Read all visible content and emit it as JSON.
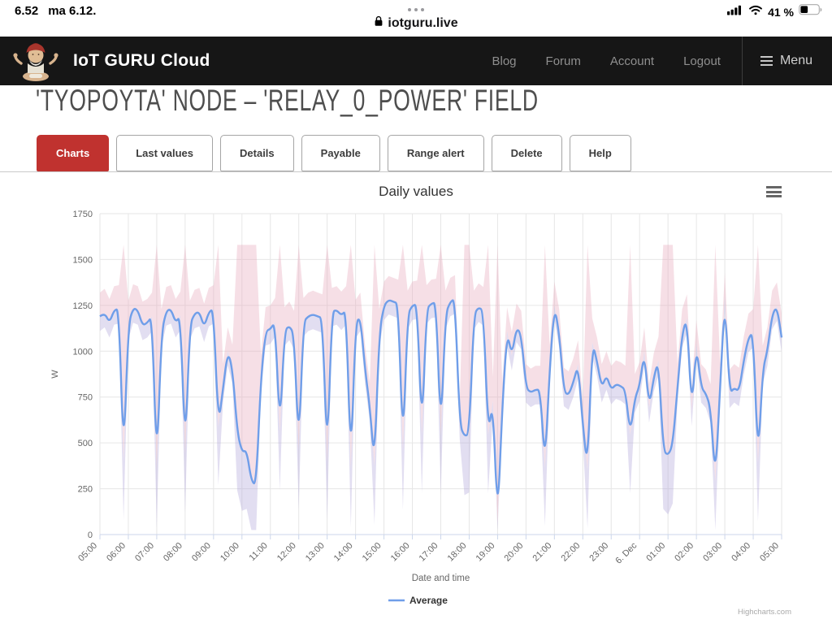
{
  "status_bar": {
    "time": "6.52",
    "date": "ma 6.12.",
    "battery_percent": "41 %",
    "battery_level": 0.41
  },
  "browser": {
    "url": "iotguru.live"
  },
  "header": {
    "brand": "IoT GURU Cloud",
    "nav": [
      "Blog",
      "Forum",
      "Account",
      "Logout"
    ],
    "menu_label": "Menu"
  },
  "page": {
    "heading": "'TYOPOYTA' NODE – 'RELAY_0_POWER' FIELD"
  },
  "tabs": [
    {
      "label": "Charts",
      "active": true
    },
    {
      "label": "Last values",
      "active": false
    },
    {
      "label": "Details",
      "active": false
    },
    {
      "label": "Payable",
      "active": false
    },
    {
      "label": "Range alert",
      "active": false
    },
    {
      "label": "Delete",
      "active": false
    },
    {
      "label": "Help",
      "active": false
    }
  ],
  "chart_data": {
    "type": "line",
    "title": "Daily values",
    "xlabel": "Date and time",
    "ylabel": "W",
    "ylim": [
      0,
      1750
    ],
    "grid": true,
    "legend_position": "bottom-center",
    "y_ticks": [
      0,
      250,
      500,
      750,
      1000,
      1250,
      1500,
      1750
    ],
    "x_tick_labels": [
      "05:00",
      "06:00",
      "07:00",
      "08:00",
      "09:00",
      "10:00",
      "11:00",
      "12:00",
      "13:00",
      "14:00",
      "15:00",
      "16:00",
      "17:00",
      "18:00",
      "19:00",
      "20:00",
      "21:00",
      "22:00",
      "23:00",
      "6. Dec",
      "01:00",
      "02:00",
      "03:00",
      "04:00",
      "05:00"
    ],
    "sample_interval_minutes": 10,
    "series": [
      {
        "name": "Average",
        "color": "#6f9ee9",
        "values": [
          1190,
          1210,
          1155,
          1225,
          1230,
          400,
          1145,
          1235,
          1225,
          1140,
          1155,
          1190,
          355,
          1100,
          1220,
          1230,
          1155,
          1195,
          440,
          1145,
          1205,
          1215,
          1130,
          1215,
          1230,
          590,
          800,
          1000,
          905,
          560,
          450,
          460,
          290,
          270,
          850,
          1110,
          1120,
          1160,
          560,
          1110,
          1140,
          1090,
          460,
          1160,
          1190,
          1200,
          1190,
          1180,
          400,
          1215,
          1225,
          1195,
          1225,
          360,
          1150,
          1190,
          900,
          700,
          375,
          1100,
          1250,
          1280,
          1270,
          1260,
          455,
          1200,
          1250,
          1255,
          545,
          1230,
          1260,
          1265,
          540,
          1200,
          1270,
          1285,
          600,
          535,
          550,
          1200,
          1240,
          1220,
          545,
          730,
          60,
          700,
          1110,
          975,
          1130,
          1090,
          800,
          775,
          790,
          790,
          365,
          900,
          1250,
          1100,
          780,
          760,
          830,
          930,
          600,
          355,
          1050,
          945,
          800,
          870,
          790,
          820,
          810,
          790,
          545,
          745,
          810,
          1000,
          690,
          860,
          950,
          460,
          430,
          490,
          800,
          1100,
          1180,
          670,
          1040,
          800,
          770,
          690,
          290,
          800,
          1300,
          770,
          800,
          780,
          950,
          1075,
          1100,
          390,
          900,
          1000,
          1200,
          1245,
          1075
        ]
      }
    ],
    "band": {
      "name": "Min–Max range",
      "dip_threshold": 600,
      "dip_drop": 320,
      "min_low": 25,
      "dip_high": 1580,
      "low_delta": 80,
      "high_delta": 130,
      "pink": "rgba(231,171,189,0.38)",
      "lavender": "rgba(178,168,218,0.38)"
    },
    "legend": [
      {
        "name": "Average",
        "color": "#6f9ee9"
      }
    ],
    "credit": "Highcharts.com",
    "colors": {
      "grid": "#e6e6e6",
      "axis": "#ccd6eb",
      "label": "#666666",
      "title": "#333333"
    }
  }
}
